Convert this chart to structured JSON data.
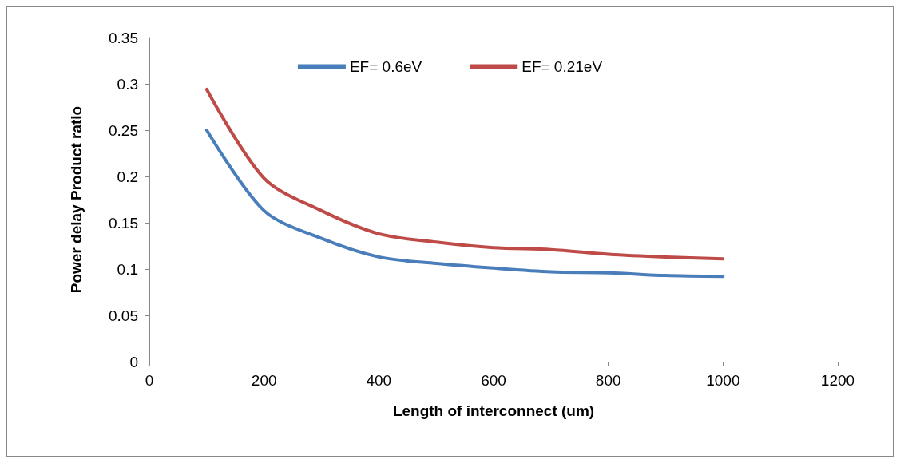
{
  "chart_data": {
    "type": "line",
    "xlabel": "Length of interconnect (um)",
    "ylabel": "Power delay Product ratio",
    "x": [
      100,
      200,
      300,
      400,
      500,
      600,
      700,
      800,
      900,
      1000
    ],
    "series": [
      {
        "name": "EF= 0.6eV",
        "color": "#4a7ebb",
        "values": [
          0.25,
          0.163,
          0.133,
          0.113,
          0.106,
          0.101,
          0.097,
          0.096,
          0.093,
          0.092
        ]
      },
      {
        "name": "EF= 0.21eV",
        "color": "#be4b48",
        "values": [
          0.294,
          0.198,
          0.163,
          0.138,
          0.129,
          0.123,
          0.121,
          0.116,
          0.113,
          0.111
        ]
      }
    ],
    "xlim": [
      0,
      1200
    ],
    "xticks": [
      0,
      200,
      400,
      600,
      800,
      1000,
      1200
    ],
    "ylim": [
      0,
      0.35
    ],
    "yticks": [
      0,
      0.05,
      0.1,
      0.15,
      0.2,
      0.25,
      0.3,
      0.35
    ],
    "legend": "top",
    "grid": false,
    "marker": "none",
    "line_style": "solid"
  }
}
